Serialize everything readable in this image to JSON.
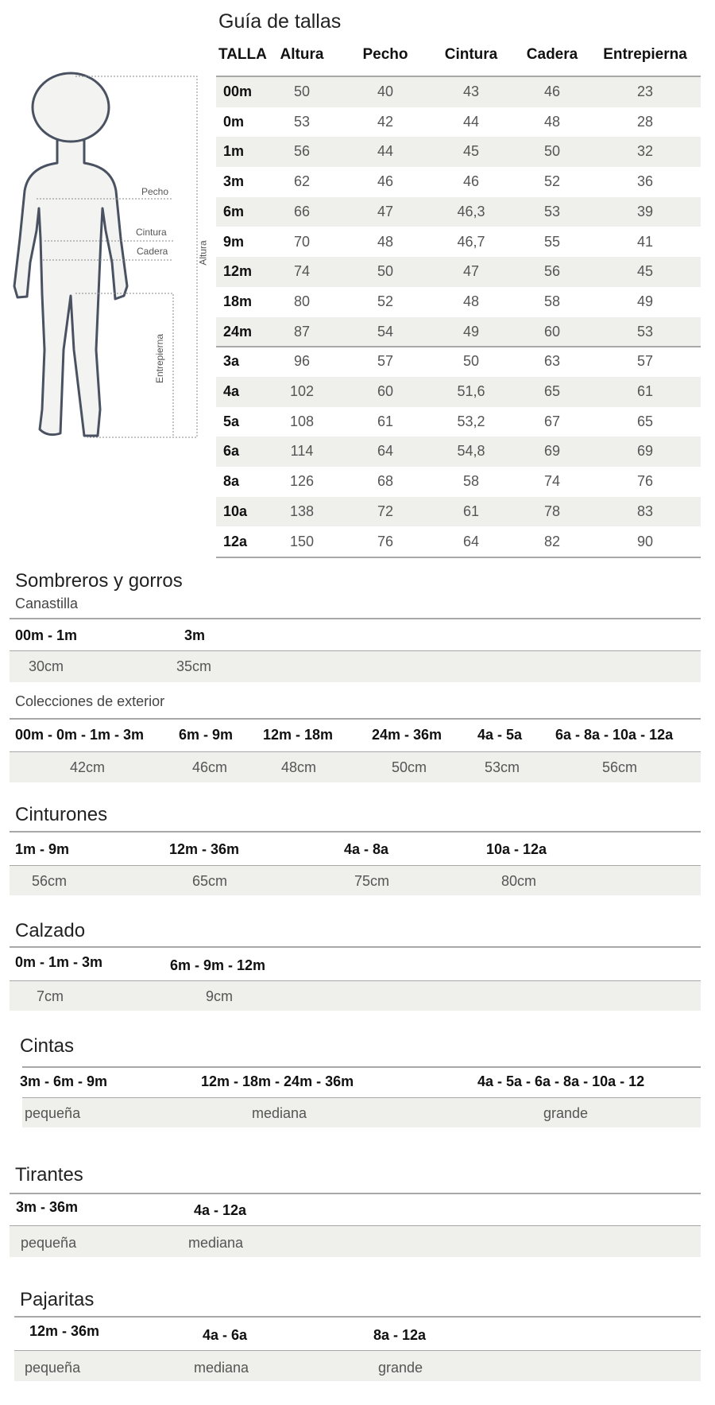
{
  "figure": {
    "labels": {
      "pecho": "Pecho",
      "cintura": "Cintura",
      "cadera": "Cadera",
      "altura": "Altura",
      "entrepierna": "Entrepierna"
    },
    "colors": {
      "outline": "#4a5262",
      "fill": "#f3f3f1"
    }
  },
  "size_guide": {
    "title": "Guía de tallas",
    "columns": [
      "TALLA",
      "Altura",
      "Pecho",
      "Cintura",
      "Cadera",
      "Entrepierna"
    ],
    "rows": [
      [
        "00m",
        "50",
        "40",
        "43",
        "46",
        "23"
      ],
      [
        "0m",
        "53",
        "42",
        "44",
        "48",
        "28"
      ],
      [
        "1m",
        "56",
        "44",
        "45",
        "50",
        "32"
      ],
      [
        "3m",
        "62",
        "46",
        "46",
        "52",
        "36"
      ],
      [
        "6m",
        "66",
        "47",
        "46,3",
        "53",
        "39"
      ],
      [
        "9m",
        "70",
        "48",
        "46,7",
        "55",
        "41"
      ],
      [
        "12m",
        "74",
        "50",
        "47",
        "56",
        "45"
      ],
      [
        "18m",
        "80",
        "52",
        "48",
        "58",
        "49"
      ],
      [
        "24m",
        "87",
        "54",
        "49",
        "60",
        "53"
      ],
      [
        "3a",
        "96",
        "57",
        "50",
        "63",
        "57"
      ],
      [
        "4a",
        "102",
        "60",
        "51,6",
        "65",
        "61"
      ],
      [
        "5a",
        "108",
        "61",
        "53,2",
        "67",
        "65"
      ],
      [
        "6a",
        "114",
        "64",
        "54,8",
        "69",
        "69"
      ],
      [
        "8a",
        "126",
        "68",
        "58",
        "74",
        "76"
      ],
      [
        "10a",
        "138",
        "72",
        "61",
        "78",
        "83"
      ],
      [
        "12a",
        "150",
        "76",
        "64",
        "82",
        "90"
      ]
    ]
  },
  "sections": [
    {
      "title": "Sombreros y gorros",
      "subtitle": "Canastilla",
      "sizes": [
        "00m - 1m",
        "3m"
      ],
      "values": [
        "30cm",
        "35cm"
      ]
    },
    {
      "subtitle": "Colecciones de exterior",
      "sizes": [
        "00m - 0m - 1m - 3m",
        "6m - 9m",
        "12m - 18m",
        "24m - 36m",
        "4a - 5a",
        "6a - 8a - 10a - 12a"
      ],
      "values": [
        "42cm",
        "46cm",
        "48cm",
        "50cm",
        "53cm",
        "56cm"
      ]
    },
    {
      "title": "Cinturones",
      "sizes": [
        "1m - 9m",
        "12m - 36m",
        "4a - 8a",
        "10a - 12a"
      ],
      "values": [
        "56cm",
        "65cm",
        "75cm",
        "80cm"
      ]
    },
    {
      "title": "Calzado",
      "sizes": [
        "0m - 1m - 3m",
        "6m - 9m - 12m"
      ],
      "values": [
        "7cm",
        "9cm"
      ]
    },
    {
      "title": "Cintas",
      "sizes": [
        "3m - 6m - 9m",
        "12m - 18m - 24m - 36m",
        "4a - 5a - 6a - 8a - 10a - 12"
      ],
      "values": [
        "pequeña",
        "mediana",
        "grande"
      ]
    },
    {
      "title": "Tirantes",
      "sizes": [
        "3m - 36m",
        "4a - 12a"
      ],
      "values": [
        "pequeña",
        "mediana"
      ]
    },
    {
      "title": "Pajaritas",
      "sizes": [
        "12m - 36m",
        "4a - 6a",
        "8a - 12a"
      ],
      "values": [
        "pequeña",
        "mediana",
        "grande"
      ]
    }
  ]
}
